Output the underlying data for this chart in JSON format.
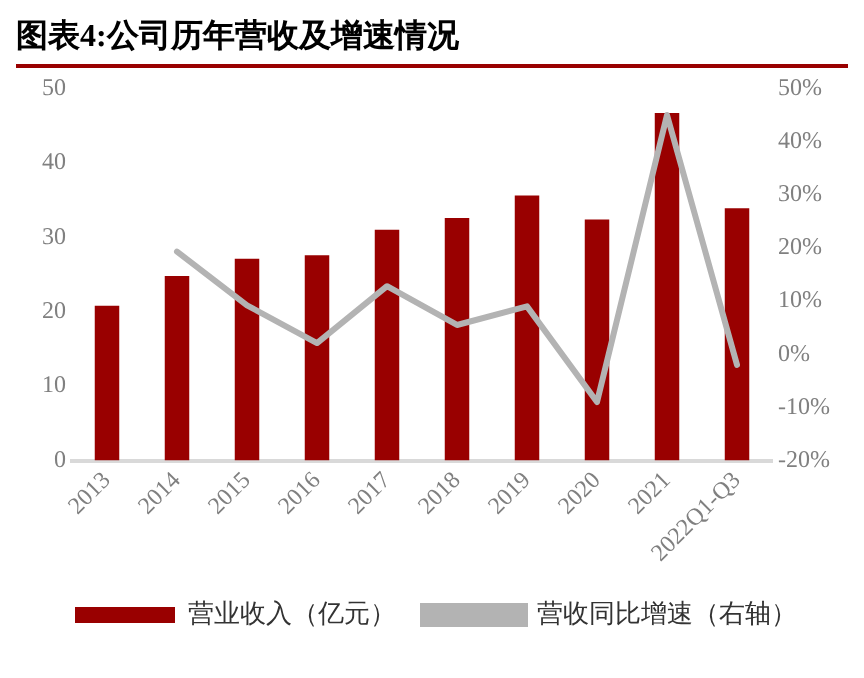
{
  "chart_data": {
    "type": "bar",
    "title": "图表4:公司历年营收及增速情况",
    "categories": [
      "2013",
      "2014",
      "2015",
      "2016",
      "2017",
      "2018",
      "2019",
      "2020",
      "2021",
      "2022Q1-Q3"
    ],
    "series": [
      {
        "name": "营业收入（亿元）",
        "color": "#990000",
        "values": [
          20.8,
          24.8,
          27.1,
          27.6,
          31.0,
          32.6,
          35.6,
          32.4,
          46.7,
          33.9
        ]
      },
      {
        "name": "营收同比增速（右轴）",
        "type": "line",
        "axis": "y2",
        "color": "#b3b3b3",
        "values": [
          null,
          19.3,
          9.2,
          2.1,
          12.8,
          5.5,
          9.0,
          -9.0,
          45,
          -2.0
        ]
      }
    ],
    "ylim": [
      0,
      50
    ],
    "yticks": [
      0,
      10,
      20,
      30,
      40,
      50
    ],
    "y2lim": [
      -20,
      50
    ],
    "y2ticks": [
      {
        "value": -20,
        "label": "-20%"
      },
      {
        "value": -10,
        "label": "-10%"
      },
      {
        "value": 0,
        "label": "0%"
      },
      {
        "value": 10,
        "label": "10%"
      },
      {
        "value": 20,
        "label": "20%"
      },
      {
        "value": 30,
        "label": "30%"
      },
      {
        "value": 40,
        "label": "40%"
      },
      {
        "value": 50,
        "label": "50%"
      }
    ],
    "legend": "bottom",
    "marker": "none",
    "grid": false
  }
}
